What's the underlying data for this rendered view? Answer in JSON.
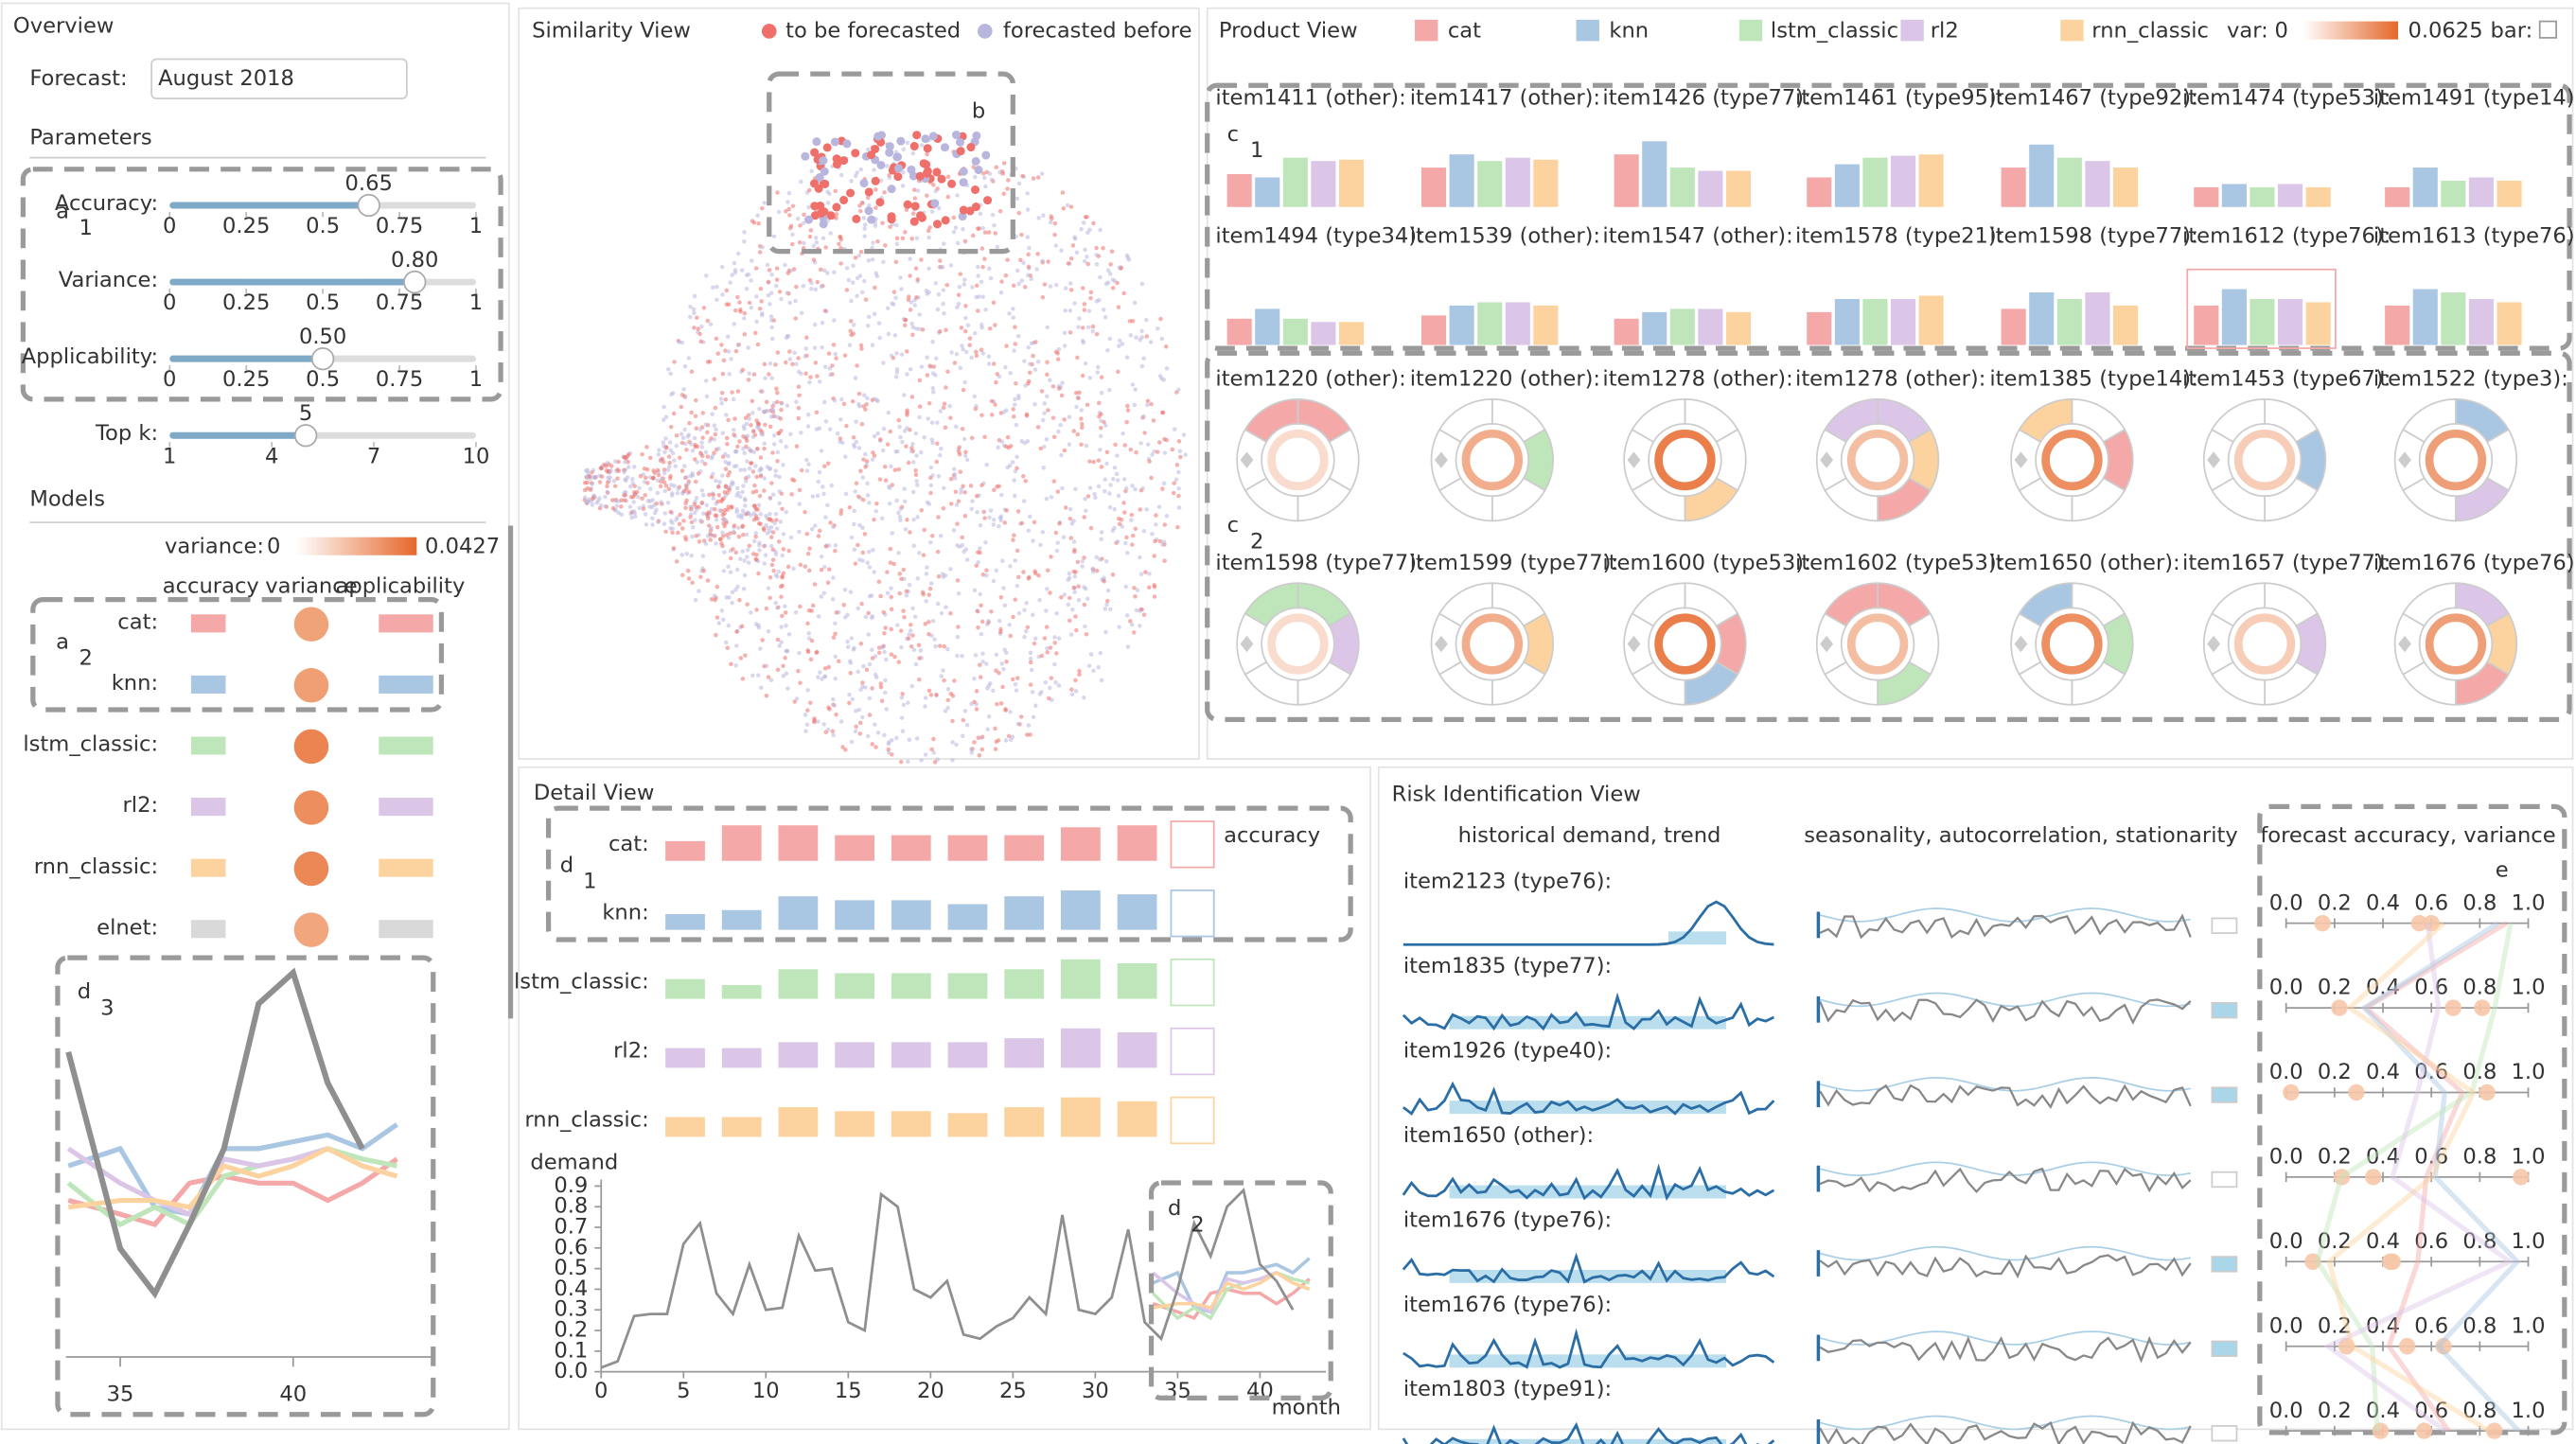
{
  "overview": {
    "title": "Overview",
    "forecast_label": "Forecast:",
    "forecast_value": "August 2018",
    "parameters_title": "Parameters",
    "sliders": [
      {
        "label": "Accuracy:",
        "value": 0.65,
        "range": [
          0,
          1
        ],
        "ticks": [
          0,
          0.25,
          0.5,
          0.75,
          1
        ]
      },
      {
        "label": "Variance:",
        "value": {
          "value": 0.8,
          "label": "0.80"
        },
        "range": [
          0,
          1
        ],
        "ticks": [
          0,
          0.25,
          0.5,
          0.75,
          1
        ]
      },
      {
        "label": "Applicability:",
        "value": {
          "value": 0.5,
          "label": "0.50"
        },
        "range": [
          0,
          1
        ],
        "ticks": [
          0,
          0.25,
          0.5,
          0.75,
          1
        ]
      },
      {
        "label": "Top k:",
        "value": 5,
        "range": [
          1,
          10
        ],
        "ticks": [
          1,
          4,
          7,
          10
        ]
      }
    ],
    "models_title": "Models",
    "variance_legend": {
      "label": "variance:",
      "min": 0,
      "max": 0.0427
    },
    "headers": [
      "accuracy",
      "variance",
      "applicability"
    ],
    "d3": {
      "xlim": [
        33.4,
        44
      ],
      "ylim": [
        0,
        1
      ],
      "xticks": [
        35,
        40
      ],
      "actual": {
        "x": [
          33.5,
          35,
          36,
          37,
          38,
          39,
          40,
          41,
          42
        ],
        "values": [
          0.76,
          0.19,
          0.06,
          0.26,
          0.48,
          0.9,
          0.99,
          0.67,
          0.48
        ]
      }
    }
  },
  "models": [
    {
      "name": "cat",
      "label": "cat:",
      "color": "#f4a8a8",
      "variance": 0.02
    },
    {
      "name": "knn",
      "label": "knn:",
      "color": "#a9c6e3",
      "variance": 0.022
    },
    {
      "name": "lstm_classic",
      "label": "lstm_classic:",
      "color": "#bfe6bb",
      "variance": 0.035
    },
    {
      "name": "rl2",
      "label": "rl2:",
      "color": "#dcc6e8",
      "variance": 0.03
    },
    {
      "name": "rnn_classic",
      "label": "rnn_classic:",
      "color": "#fcd39e",
      "variance": 0.033
    },
    {
      "name": "elnet",
      "label": "elnet:",
      "color": "#d9d9d9",
      "variance": 0.018
    }
  ],
  "forecasts": {
    "x": [
      33.5,
      35,
      36,
      37,
      38,
      39,
      40,
      41,
      42,
      43
    ],
    "series": [
      {
        "values": [
          0.33,
          0.29,
          0.26,
          0.38,
          0.4,
          0.38,
          0.38,
          0.33,
          0.38,
          0.45
        ]
      },
      {
        "values": [
          0.43,
          0.48,
          0.31,
          0.29,
          0.48,
          0.48,
          0.5,
          0.52,
          0.48,
          0.55
        ]
      },
      {
        "values": [
          0.38,
          0.26,
          0.31,
          0.26,
          0.4,
          0.43,
          0.45,
          0.48,
          0.45,
          0.43
        ]
      },
      {
        "values": [
          0.48,
          0.38,
          0.33,
          0.29,
          0.45,
          0.43,
          0.45,
          0.48,
          0.43,
          0.4
        ]
      },
      {
        "values": [
          0.31,
          0.33,
          0.33,
          0.31,
          0.43,
          0.4,
          0.43,
          0.48,
          0.43,
          0.4
        ]
      }
    ]
  },
  "similarity": {
    "title": "Similarity View",
    "legend": [
      {
        "label": "to be forecasted",
        "color": "#ef6f6a"
      },
      {
        "label": "forecasted before",
        "color": "#b9b6de"
      }
    ]
  },
  "product": {
    "title": "Product View",
    "var_legend": {
      "label": "var:",
      "min": 0,
      "max": 0.0625
    },
    "bar_label": "bar:",
    "bar_items": [
      {
        "label": "item1411 (other):",
        "values": [
          0.5,
          0.45,
          0.75,
          0.7,
          0.72
        ]
      },
      {
        "label": "item1417 (other):",
        "values": [
          0.6,
          0.8,
          0.7,
          0.75,
          0.72
        ]
      },
      {
        "label": "item1426 (type77):",
        "values": [
          0.8,
          1,
          0.6,
          0.55,
          0.55
        ]
      },
      {
        "label": "item1461 (type95):",
        "values": [
          0.45,
          0.65,
          0.75,
          0.78,
          0.8
        ]
      },
      {
        "label": "item1467 (type92):",
        "values": [
          0.6,
          0.95,
          0.75,
          0.7,
          0.6
        ]
      },
      {
        "label": "item1474 (type53):",
        "values": [
          0.3,
          0.35,
          0.3,
          0.35,
          0.3
        ]
      },
      {
        "label": "item1491 (type14):",
        "values": [
          0.3,
          0.6,
          0.4,
          0.45,
          0.4
        ]
      },
      {
        "label": "item1494 (type34):",
        "values": [
          0.4,
          0.55,
          0.4,
          0.35,
          0.35
        ]
      },
      {
        "label": "item1539 (other):",
        "values": [
          0.45,
          0.6,
          0.65,
          0.65,
          0.6
        ]
      },
      {
        "label": "item1547 (other):",
        "values": [
          0.4,
          0.5,
          0.55,
          0.55,
          0.5
        ]
      },
      {
        "label": "item1578 (type21):",
        "values": [
          0.5,
          0.7,
          0.7,
          0.7,
          0.75
        ]
      },
      {
        "label": "item1598 (type77):",
        "values": [
          0.55,
          0.8,
          0.7,
          0.8,
          0.6
        ]
      },
      {
        "label": "item1612 (type76):",
        "values": [
          0.6,
          0.85,
          0.7,
          0.7,
          0.65
        ]
      },
      {
        "label": "item1613 (type76):",
        "values": [
          0.6,
          0.85,
          0.8,
          0.7,
          0.65
        ]
      }
    ],
    "glyph_items": [
      "item1220 (other):",
      "item1220 (other):",
      "item1278 (other):",
      "item1278 (other):",
      "item1385 (type14):",
      "item1453 (type67):",
      "item1522 (type3):",
      "item1598 (type77):",
      "item1599 (type77):",
      "item1600 (type53):",
      "item1602 (type53):",
      "item1650 (other):",
      "item1657 (type77):",
      "item1676 (type76):"
    ]
  },
  "detail": {
    "title": "Detail View",
    "accuracy_label": "accuracy",
    "bars": [
      [
        0.5,
        0.9,
        0.9,
        0.65,
        0.65,
        0.65,
        0.65,
        0.85,
        0.9
      ],
      [
        0.4,
        0.5,
        0.85,
        0.75,
        0.75,
        0.65,
        0.85,
        1,
        0.9
      ],
      [
        0.5,
        0.35,
        0.75,
        0.65,
        0.65,
        0.65,
        0.75,
        1,
        0.9
      ],
      [
        0.5,
        0.5,
        0.65,
        0.65,
        0.65,
        0.65,
        0.75,
        1,
        0.9
      ],
      [
        0.5,
        0.5,
        0.75,
        0.65,
        0.65,
        0.6,
        0.75,
        1,
        0.9
      ]
    ],
    "chart": {
      "ylabel": "demand",
      "xlabel": "month",
      "xlim": [
        0,
        44
      ],
      "ylim": [
        0,
        0.9
      ],
      "xticks": [
        0,
        5,
        10,
        15,
        20,
        25,
        30,
        35,
        40
      ],
      "yticks": [
        {
          "value": 0,
          "label": "0.0"
        },
        0.1,
        0.2,
        0.3,
        0.4,
        0.5,
        0.6,
        0.7,
        0.8,
        0.9
      ],
      "x": [
        0,
        1,
        2,
        3,
        4,
        5,
        6,
        7,
        8,
        9,
        10,
        11,
        12,
        13,
        14,
        15,
        16,
        17,
        18,
        19,
        20,
        21,
        22,
        23,
        24,
        25,
        26,
        27,
        28,
        29,
        30,
        31,
        32,
        33,
        34,
        35,
        36,
        37,
        38,
        39,
        40,
        41,
        42
      ],
      "values": [
        0.02,
        0.05,
        0.27,
        0.28,
        0.28,
        0.62,
        0.72,
        0.38,
        0.28,
        0.52,
        0.3,
        0.31,
        0.66,
        0.49,
        0.5,
        0.24,
        0.2,
        0.86,
        0.8,
        0.4,
        0.36,
        0.44,
        0.18,
        0.16,
        0.22,
        0.26,
        0.36,
        0.28,
        0.76,
        0.3,
        0.28,
        0.36,
        0.69,
        0.24,
        0.16,
        0.4,
        0.72,
        0.56,
        0.8,
        0.88,
        0.52,
        0.44,
        0.3
      ]
    }
  },
  "risk": {
    "title": "Risk Identification View",
    "headers": [
      "historical demand, trend",
      "seasonality, autocorrelation, stationarity",
      "forecast accuracy, variance"
    ],
    "items": [
      "item2123 (type76):",
      "item1835 (type77):",
      "item1926 (type40):",
      "item1650 (other):",
      "item1676 (type76):",
      "item1676 (type76):",
      "item1803 (type91):"
    ],
    "range": [
      0,
      1
    ],
    "ticks": [
      {
        "value": 0,
        "label": "0.0"
      },
      0.2,
      0.4,
      0.6,
      0.8,
      {
        "value": 1,
        "label": "1.0"
      }
    ]
  },
  "annotations": [
    {
      "letter": "a",
      "sub": "1"
    },
    {
      "letter": "a",
      "sub": "2"
    },
    {
      "letter": "d",
      "sub": "3"
    },
    {
      "letter": "b"
    },
    {
      "letter": "c",
      "sub": "1"
    },
    {
      "letter": "c",
      "sub": "2"
    },
    {
      "letter": "d",
      "sub": "1"
    },
    {
      "letter": "d",
      "sub": "2"
    },
    {
      "letter": "e"
    }
  ]
}
